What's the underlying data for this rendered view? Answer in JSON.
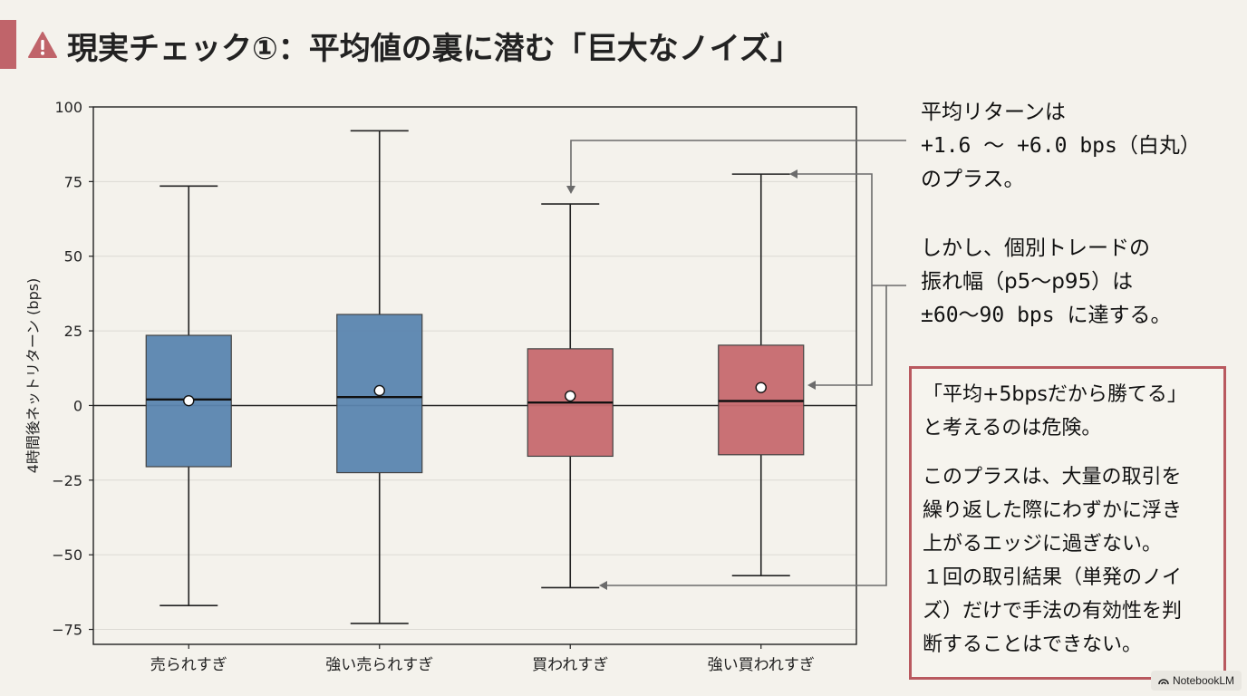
{
  "header": {
    "title": "現実チェック①：平均値の裏に潜む「巨大なノイズ」",
    "accent_color": "#c0646a",
    "icon": "warning-icon"
  },
  "chart_data": {
    "type": "box",
    "ylabel": "4時間後ネットリターン (bps)",
    "ylim": [
      -80,
      100
    ],
    "yticks": [
      -75,
      -50,
      -25,
      0,
      25,
      50,
      75,
      100
    ],
    "ytick_labels": [
      "−75",
      "−50",
      "−25",
      "0",
      "25",
      "50",
      "75",
      "100"
    ],
    "grid": "horizontal",
    "zero_line": true,
    "categories": [
      "売られすぎ",
      "強い売られすぎ",
      "買われすぎ",
      "強い買われすぎ"
    ],
    "boxes": [
      {
        "whisker_low": -67,
        "q1": -20.5,
        "median": 2,
        "q3": 23.5,
        "whisker_high": 73.5,
        "mean": 1.6,
        "color": "#5b86b0"
      },
      {
        "whisker_low": -73,
        "q1": -22.5,
        "median": 2.8,
        "q3": 30.5,
        "whisker_high": 92,
        "mean": 5,
        "color": "#5b86b0"
      },
      {
        "whisker_low": -61,
        "q1": -17,
        "median": 1,
        "q3": 19,
        "whisker_high": 67.5,
        "mean": 3.2,
        "color": "#c76b6f"
      },
      {
        "whisker_low": -57,
        "q1": -16.5,
        "median": 1.5,
        "q3": 20.2,
        "whisker_high": 77.5,
        "mean": 6,
        "color": "#c76b6f"
      }
    ]
  },
  "notes": {
    "mean_note_line1": "平均リターンは",
    "mean_note_line2": "+1.6 〜 +6.0 bps（白丸）",
    "mean_note_line3": "のプラス。",
    "spread_note_line1": "しかし、個別トレードの",
    "spread_note_line2": "振れ幅（p5〜p95）は",
    "spread_note_line3": "±60〜90 bps に達する。"
  },
  "callout": {
    "quote": "「平均+5bpsだから勝てる」\nと考えるのは危険。",
    "body": "このプラスは、大量の取引を\n繰り返した際にわずかに浮き\n上がるエッジに過ぎない。\n１回の取引結果（単発のノイ\nズ）だけで手法の有効性を判\n断することはできない。"
  },
  "brand": {
    "label": "NotebookLM"
  }
}
